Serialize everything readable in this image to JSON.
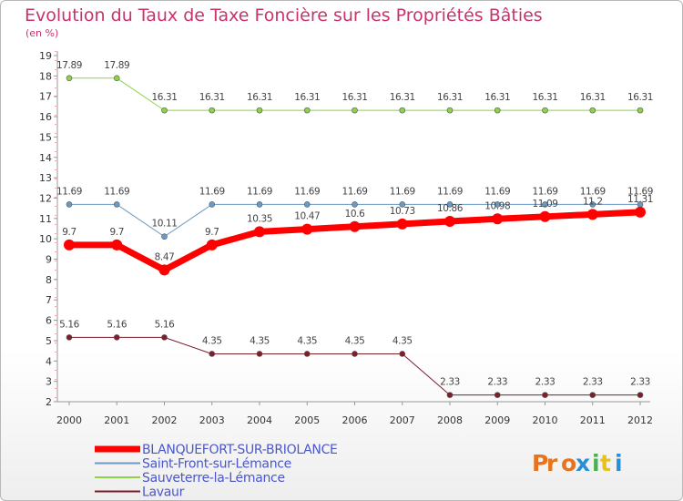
{
  "chart_data": {
    "type": "line",
    "title": "Evolution du Taux de Taxe Foncière sur les Propriétés Bâties",
    "subtitle": "(en %)",
    "x": [
      "2000",
      "2001",
      "2002",
      "2003",
      "2004",
      "2005",
      "2006",
      "2007",
      "2008",
      "2009",
      "2010",
      "2011",
      "2012"
    ],
    "ylim": [
      2,
      19
    ],
    "yticks": [
      2,
      3,
      4,
      5,
      6,
      7,
      8,
      9,
      10,
      11,
      12,
      13,
      14,
      15,
      16,
      17,
      18,
      19
    ],
    "grid": false,
    "legend_position": "bottom-left",
    "series": [
      {
        "name": "BLANQUEFORT-SUR-BRIOLANCE",
        "color": "#ff0000",
        "width": 7,
        "values": [
          9.7,
          9.7,
          8.47,
          9.7,
          10.35,
          10.47,
          10.6,
          10.73,
          10.86,
          10.98,
          11.09,
          11.2,
          11.31
        ],
        "labels": [
          "9.7",
          "9.7",
          "8.47",
          "9.7",
          "10.35",
          "10.47",
          "10.6",
          "10.73",
          "10.86",
          "10.98",
          "11.09",
          "11.2",
          "11.31"
        ]
      },
      {
        "name": "Saint-Front-sur-Lémance",
        "color": "#6b9ac4",
        "width": 1,
        "values": [
          11.69,
          11.69,
          10.11,
          11.69,
          11.69,
          11.69,
          11.69,
          11.69,
          11.69,
          11.69,
          11.69,
          11.69,
          11.69
        ],
        "labels": [
          "11.69",
          "11.69",
          "10.11",
          "11.69",
          "11.69",
          "11.69",
          "11.69",
          "11.69",
          "11.69",
          "11.69",
          "11.69",
          "11.69",
          "11.69"
        ]
      },
      {
        "name": "Sauveterre-la-Lémance",
        "color": "#8cd24a",
        "width": 1,
        "values": [
          17.89,
          17.89,
          16.31,
          16.31,
          16.31,
          16.31,
          16.31,
          16.31,
          16.31,
          16.31,
          16.31,
          16.31,
          16.31
        ],
        "labels": [
          "17.89",
          "17.89",
          "16.31",
          "16.31",
          "16.31",
          "16.31",
          "16.31",
          "16.31",
          "16.31",
          "16.31",
          "16.31",
          "16.31",
          "16.31"
        ]
      },
      {
        "name": "Lavaur",
        "color": "#7a1f2b",
        "width": 1,
        "values": [
          5.16,
          5.16,
          5.16,
          4.35,
          4.35,
          4.35,
          4.35,
          4.35,
          2.33,
          2.33,
          2.33,
          2.33,
          2.33
        ],
        "labels": [
          "5.16",
          "5.16",
          "5.16",
          "4.35",
          "4.35",
          "4.35",
          "4.35",
          "4.35",
          "2.33",
          "2.33",
          "2.33",
          "2.33",
          "2.33"
        ]
      }
    ]
  },
  "logo": {
    "text": "Proxiti",
    "colors": [
      "#e8731c",
      "#2b8fd6",
      "#4caf50",
      "#e8c21c"
    ]
  }
}
